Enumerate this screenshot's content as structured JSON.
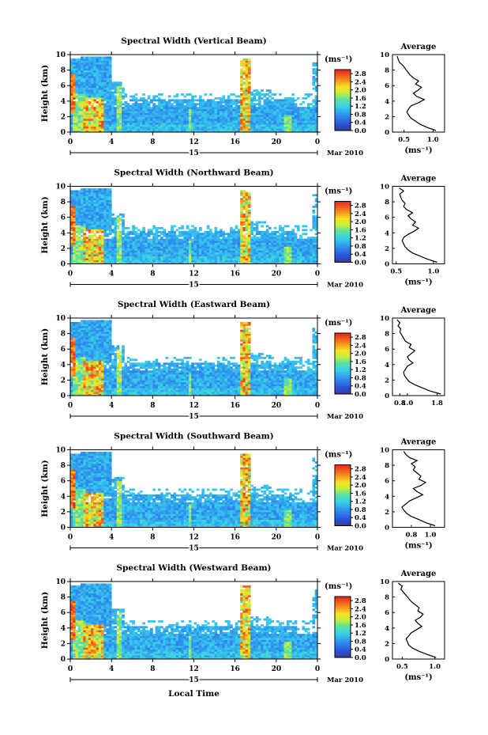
{
  "figure": {
    "xlabel": "Local Time",
    "date_label": "Mar 2010",
    "day_label": "15",
    "ylabel": "Height (km)",
    "unit_label": "(ms⁻¹)",
    "avg_title": "Average",
    "avg_xlabel": "(ms⁻¹)"
  },
  "chart_data": [
    {
      "type": "heatmap",
      "title": "Spectral Width (Vertical Beam)",
      "xlabel": "",
      "ylabel": "Height (km)",
      "x_ticks": [
        "0",
        "4",
        "8",
        "12",
        "16",
        "20",
        "0"
      ],
      "y_ticks": [
        "0",
        "2",
        "4",
        "6",
        "8",
        "10"
      ],
      "xlim": [
        0,
        24
      ],
      "ylim": [
        0,
        10
      ],
      "colorbar": {
        "ticks": [
          "0.0",
          "0.4",
          "0.8",
          "1.2",
          "1.6",
          "2.0",
          "2.4",
          "2.8"
        ],
        "range": [
          0,
          3.0
        ]
      },
      "average_profile": {
        "type": "line",
        "title": "Average",
        "xlabel": "(ms⁻¹)",
        "x_ticks": [
          "0.5",
          "1.0"
        ],
        "xlim": [
          0.3,
          1.2
        ],
        "ylim": [
          0,
          10
        ],
        "heights": [
          0.2,
          0.6,
          1.0,
          1.4,
          1.8,
          2.2,
          2.6,
          3.0,
          3.4,
          3.8,
          4.2,
          4.6,
          5.0,
          5.4,
          5.8,
          6.2,
          6.6,
          7.0,
          7.4,
          7.8,
          8.2,
          8.6,
          9.0,
          9.4,
          9.8
        ],
        "values": [
          1.05,
          0.9,
          0.78,
          0.7,
          0.62,
          0.58,
          0.55,
          0.58,
          0.62,
          0.75,
          0.85,
          0.72,
          0.66,
          0.74,
          0.8,
          0.7,
          0.75,
          0.66,
          0.6,
          0.56,
          0.52,
          0.48,
          0.42,
          0.4,
          0.38
        ]
      }
    },
    {
      "type": "heatmap",
      "title": "Spectral Width (Northward Beam)",
      "xlabel": "",
      "ylabel": "Height (km)",
      "x_ticks": [
        "0",
        "4",
        "8",
        "12",
        "16",
        "20",
        "0"
      ],
      "y_ticks": [
        "0",
        "2",
        "4",
        "6",
        "8",
        "10"
      ],
      "xlim": [
        0,
        24
      ],
      "ylim": [
        0,
        10
      ],
      "colorbar": {
        "ticks": [
          "0.0",
          "0.4",
          "0.8",
          "1.2",
          "1.6",
          "2.0",
          "2.4",
          "2.8"
        ],
        "range": [
          0,
          3.0
        ]
      },
      "average_profile": {
        "type": "line",
        "title": "Average",
        "xlabel": "(ms⁻¹)",
        "x_ticks": [
          "0.5",
          "1.0"
        ],
        "xlim": [
          0.45,
          1.15
        ],
        "ylim": [
          0,
          10
        ],
        "heights": [
          0.2,
          0.6,
          1.0,
          1.4,
          1.8,
          2.2,
          2.6,
          3.0,
          3.4,
          3.8,
          4.2,
          4.6,
          5.0,
          5.4,
          5.8,
          6.2,
          6.6,
          7.0,
          7.4,
          7.8,
          8.2,
          8.6,
          9.0,
          9.4,
          9.8
        ],
        "values": [
          1.05,
          0.92,
          0.82,
          0.72,
          0.66,
          0.62,
          0.6,
          0.58,
          0.6,
          0.66,
          0.74,
          0.8,
          0.72,
          0.76,
          0.7,
          0.66,
          0.72,
          0.64,
          0.6,
          0.62,
          0.58,
          0.56,
          0.55,
          0.6,
          0.54
        ]
      }
    },
    {
      "type": "heatmap",
      "title": "Spectral Width (Eastward Beam)",
      "xlabel": "",
      "ylabel": "Height (km)",
      "x_ticks": [
        "0",
        "4",
        "8",
        "12",
        "16",
        "20",
        "0"
      ],
      "y_ticks": [
        "0",
        "2",
        "4",
        "6",
        "8",
        "10"
      ],
      "xlim": [
        0,
        24
      ],
      "ylim": [
        0,
        10
      ],
      "colorbar": {
        "ticks": [
          "0.0",
          "0.4",
          "0.8",
          "1.2",
          "1.6",
          "2.0",
          "2.4",
          "2.8"
        ],
        "range": [
          0,
          3.0
        ]
      },
      "average_profile": {
        "type": "line",
        "title": "Average",
        "xlabel": "",
        "x_ticks": [
          "0.8",
          "1.0",
          "1.8"
        ],
        "xlim": [
          0.6,
          2.0
        ],
        "ylim": [
          0,
          10
        ],
        "heights": [
          0.2,
          0.6,
          1.0,
          1.4,
          1.8,
          2.2,
          2.6,
          3.0,
          3.4,
          3.8,
          4.2,
          4.6,
          5.0,
          5.4,
          5.8,
          6.2,
          6.6,
          7.0,
          7.4,
          7.8,
          8.2,
          8.6,
          9.0,
          9.4,
          9.8
        ],
        "values": [
          1.9,
          1.6,
          1.4,
          1.2,
          1.05,
          0.98,
          0.92,
          0.9,
          0.95,
          1.0,
          1.15,
          1.05,
          1.0,
          1.1,
          1.2,
          1.05,
          1.1,
          0.95,
          0.9,
          0.85,
          0.8,
          0.82,
          0.75,
          0.8,
          0.72
        ]
      }
    },
    {
      "type": "heatmap",
      "title": "Spectral Width (Southward Beam)",
      "xlabel": "",
      "ylabel": "Height (km)",
      "x_ticks": [
        "0",
        "4",
        "8",
        "12",
        "16",
        "20",
        "0"
      ],
      "y_ticks": [
        "0",
        "2",
        "4",
        "6",
        "8",
        "10"
      ],
      "xlim": [
        0,
        24
      ],
      "ylim": [
        0,
        10
      ],
      "colorbar": {
        "ticks": [
          "0.0",
          "0.4",
          "0.8",
          "1.2",
          "1.6",
          "2.0",
          "2.4",
          "2.8"
        ],
        "range": [
          0,
          3.0
        ]
      },
      "average_profile": {
        "type": "line",
        "title": "Average",
        "xlabel": "(ms⁻¹)",
        "x_ticks": [
          "0.8",
          "1.0"
        ],
        "xlim": [
          0.6,
          1.15
        ],
        "ylim": [
          0,
          10
        ],
        "heights": [
          0.2,
          0.6,
          1.0,
          1.4,
          1.8,
          2.2,
          2.6,
          3.0,
          3.4,
          3.8,
          4.2,
          4.6,
          5.0,
          5.4,
          5.8,
          6.2,
          6.6,
          7.0,
          7.4,
          7.8,
          8.2,
          8.6,
          9.0,
          9.4,
          9.8
        ],
        "values": [
          1.05,
          0.95,
          0.88,
          0.8,
          0.75,
          0.72,
          0.7,
          0.74,
          0.78,
          0.85,
          0.92,
          0.86,
          0.82,
          0.9,
          0.95,
          0.88,
          0.9,
          0.86,
          0.82,
          0.84,
          0.8,
          0.86,
          0.78,
          0.74,
          0.72
        ]
      }
    },
    {
      "type": "heatmap",
      "title": "Spectral Width (Westward Beam)",
      "xlabel": "Local Time",
      "ylabel": "Height (km)",
      "x_ticks": [
        "0",
        "4",
        "8",
        "12",
        "16",
        "20",
        "0"
      ],
      "y_ticks": [
        "0",
        "2",
        "4",
        "6",
        "8",
        "10"
      ],
      "xlim": [
        0,
        24
      ],
      "ylim": [
        0,
        10
      ],
      "colorbar": {
        "ticks": [
          "0.0",
          "0.4",
          "0.8",
          "1.2",
          "1.6",
          "2.0",
          "2.4",
          "2.8"
        ],
        "range": [
          0,
          3.0
        ]
      },
      "average_profile": {
        "type": "line",
        "title": "Average",
        "xlabel": "(ms⁻¹)",
        "x_ticks": [
          "0.5",
          "1.0"
        ],
        "xlim": [
          0.35,
          1.15
        ],
        "ylim": [
          0,
          10
        ],
        "heights": [
          0.2,
          0.6,
          1.0,
          1.4,
          1.8,
          2.2,
          2.6,
          3.0,
          3.4,
          3.8,
          4.2,
          4.6,
          5.0,
          5.4,
          5.8,
          6.2,
          6.6,
          7.0,
          7.4,
          7.8,
          8.2,
          8.6,
          9.0,
          9.4,
          9.8
        ],
        "values": [
          1.02,
          0.88,
          0.76,
          0.66,
          0.6,
          0.58,
          0.56,
          0.6,
          0.64,
          0.72,
          0.8,
          0.74,
          0.7,
          0.78,
          0.82,
          0.74,
          0.76,
          0.7,
          0.64,
          0.6,
          0.56,
          0.52,
          0.48,
          0.5,
          0.44
        ]
      }
    }
  ]
}
